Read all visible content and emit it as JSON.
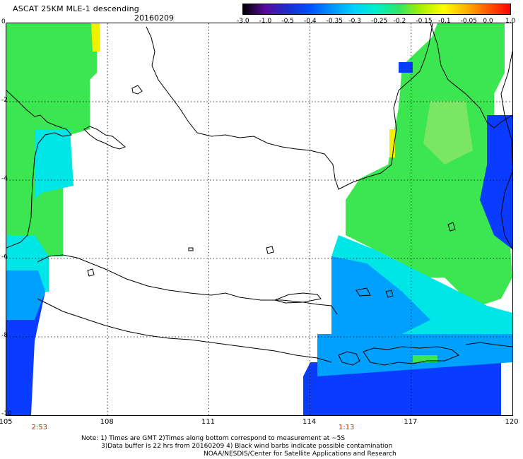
{
  "title": "ASCAT 25KM MLE-1 descending",
  "date": "20160209",
  "colorbar": {
    "labels": [
      "-3.0",
      "-1.0",
      "-0.5",
      "-0.4",
      "-0.35",
      "-0.3",
      "-0.25",
      "-0.2",
      "-0.15",
      "-0.1",
      "-0.05",
      "0.0",
      "1.0"
    ],
    "colors": [
      "#000000",
      "#5a0aa0",
      "#1a2dcc",
      "#0050ff",
      "#0096ff",
      "#00d2ff",
      "#00f0c8",
      "#32e664",
      "#aaf000",
      "#ffff00",
      "#ffb400",
      "#ff5a00",
      "#ff0000"
    ]
  },
  "map": {
    "lon_range": [
      105,
      120
    ],
    "lat_range": [
      -10,
      0
    ],
    "lon_ticks": [
      "105",
      "108",
      "111",
      "114",
      "117",
      "120"
    ],
    "lat_ticks": [
      "0",
      "-2",
      "-4",
      "-6",
      "-8",
      "-10"
    ],
    "pass_times": [
      {
        "label": "2:53",
        "lon": 106
      },
      {
        "label": "1:13",
        "lon": 115.1
      }
    ],
    "swath_colors": {
      "green": "#3ce650",
      "green_light": "#7ae664",
      "cyan": "#00e6e6",
      "lightblue": "#00a0ff",
      "blue": "#0a3cff",
      "yellow": "#f0f000"
    }
  },
  "notes": {
    "line1": "Note: 1) Times are GMT 2)Times along bottom correspond to measurement at ~5S",
    "line2": "3)Data buffer is 22 hrs from 20160209 4) Black wind barbs indicate possible contamination",
    "line3": "NOAA/NESDIS/Center for Satellite Applications and Research"
  }
}
